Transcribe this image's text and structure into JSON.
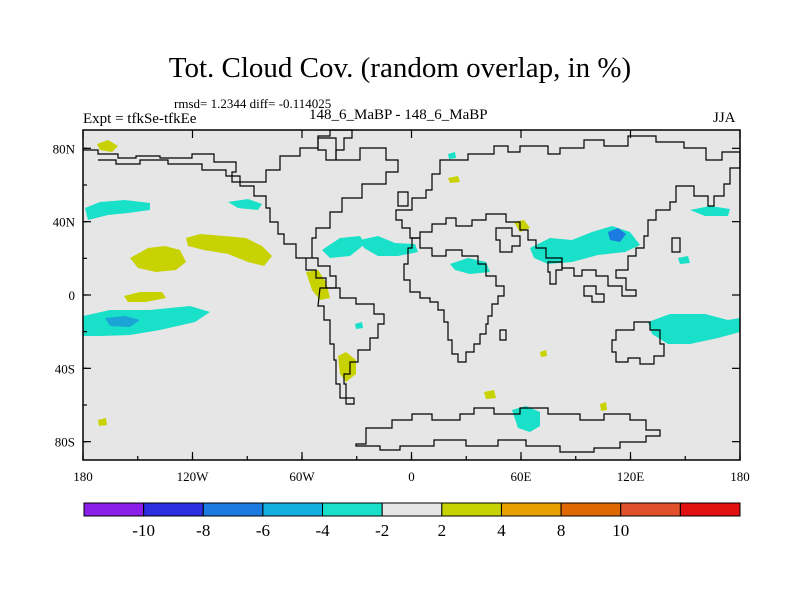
{
  "title": "Tot. Cloud Cov. (random overlap, in %)",
  "stats": "rmsd= 1.2344 diff= -0.114025",
  "expt_label": "Expt = tfkSe-tfkEe",
  "comparison": "148_6_MaBP - 148_6_MaBP",
  "season": "JJA",
  "map_fill_color": "#e6e6e6",
  "x_ticks": [
    "180",
    "120W",
    "60W",
    "0",
    "60E",
    "120E",
    "180"
  ],
  "y_ticks": [
    "80N",
    "40N",
    "0",
    "40S",
    "80S"
  ],
  "colorbar": {
    "colors": [
      "#8b1ee8",
      "#2d2ee0",
      "#1c7be0",
      "#12b0e0",
      "#19e0c8",
      "#e6e6e6",
      "#c8d200",
      "#e8a000",
      "#e06800",
      "#e0502a",
      "#e01010"
    ],
    "labels": [
      "-10",
      "-8",
      "-6",
      "-4",
      "-2",
      "2",
      "4",
      "8",
      "10"
    ]
  },
  "color_keys": {
    "cyan": "#19e0c8",
    "blue": "#1c7be0",
    "yellow": "#c8d200"
  }
}
